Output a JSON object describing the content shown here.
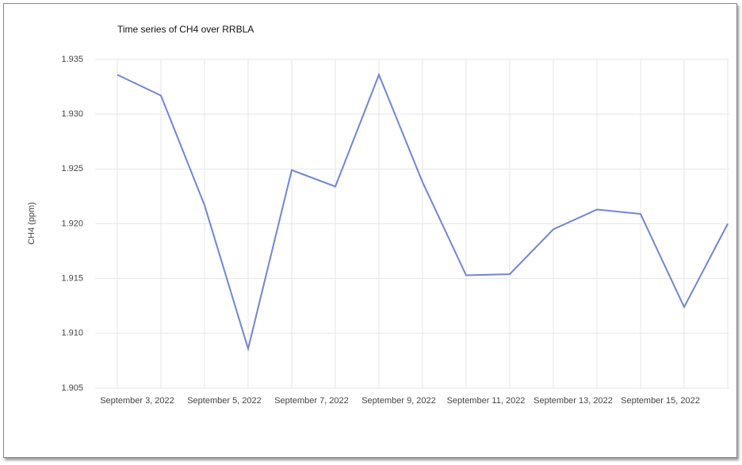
{
  "chart_data": {
    "type": "line",
    "title": "Time series of CH4 over RRBLA",
    "y_label": "CH4 (ppm)",
    "categories": [
      "September 3, 2022",
      null,
      "September 5, 2022",
      null,
      "September 7, 2022",
      null,
      "September 9, 2022",
      null,
      "September 11, 2022",
      null,
      "September 13, 2022",
      null,
      "September 15, 2022",
      null,
      null
    ],
    "series": [
      {
        "name": "CH4",
        "color": "#6f86d6",
        "values": [
          1.9336,
          1.9317,
          1.9217,
          1.9086,
          1.9249,
          1.9234,
          1.9336,
          1.9238,
          1.9153,
          1.9154,
          1.9195,
          1.9213,
          1.9209,
          1.9124,
          1.92
        ]
      }
    ],
    "ylim": [
      1.905,
      1.935
    ],
    "yticks": [
      1.905,
      {
        "value": 1.91,
        "label": "1.910"
      },
      1.915,
      {
        "value": 1.92,
        "label": "1.920"
      },
      1.925,
      {
        "value": 1.93,
        "label": "1.930"
      },
      1.935
    ],
    "grid": true
  }
}
